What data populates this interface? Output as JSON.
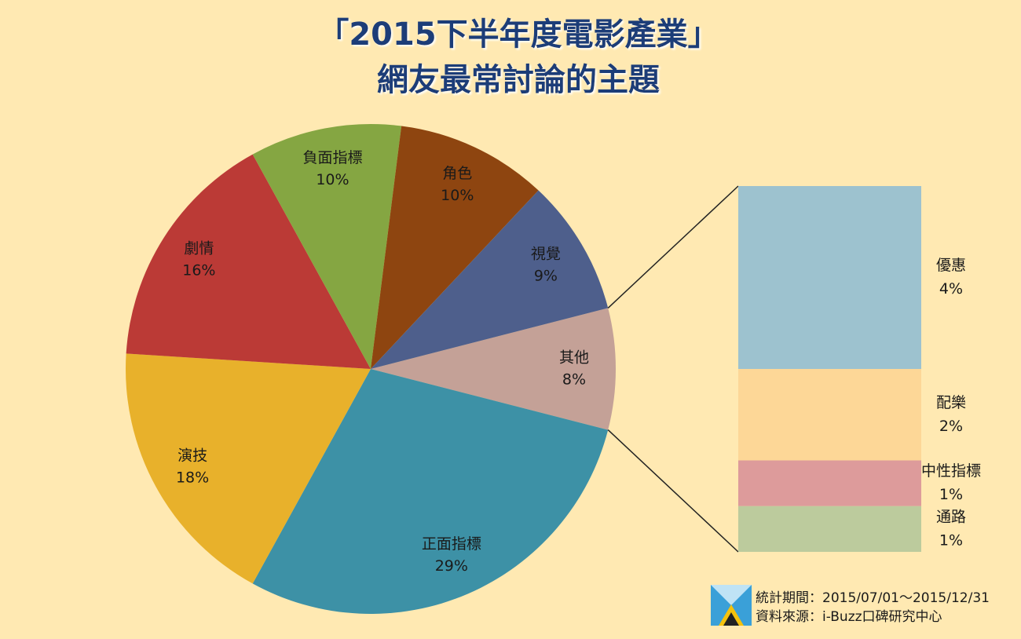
{
  "chart_data": {
    "type": "pie",
    "title": "「2015下半年度電影產業」",
    "subtitle": "網友最常討論的主題",
    "categories": [
      "其他",
      "正面指標",
      "演技",
      "劇情",
      "負面指標",
      "角色",
      "視覺"
    ],
    "values": [
      8,
      29,
      18,
      16,
      10,
      10,
      9
    ],
    "value_labels": [
      "8%",
      "29%",
      "18%",
      "16%",
      "10%",
      "10%",
      "9%"
    ],
    "colors": [
      "#c4a197",
      "#3d91a6",
      "#e8b12b",
      "#bb3a36",
      "#85a642",
      "#8e4510",
      "#4e5f8c"
    ],
    "breakdown": {
      "categories": [
        "優惠",
        "配樂",
        "中性指標",
        "通路"
      ],
      "values": [
        4,
        2,
        1,
        1
      ],
      "value_labels": [
        "4%",
        "2%",
        "1%",
        "1%"
      ],
      "colors": [
        "#9dc2cf",
        "#fdd797",
        "#dd9b9b",
        "#bccb9d"
      ]
    },
    "notes": [
      "統計期間：2015/07/01～2015/12/31",
      "資料來源：i-Buzz口碑研究中心"
    ]
  }
}
